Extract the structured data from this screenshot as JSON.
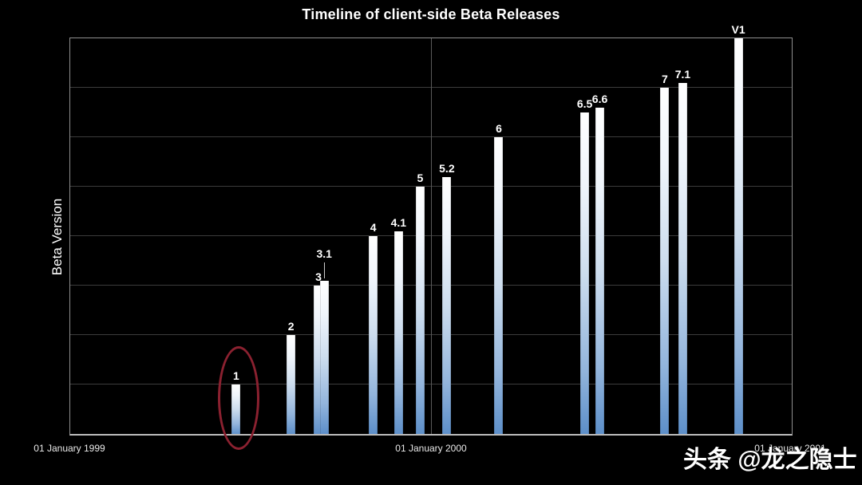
{
  "watermark": {
    "text": "头条 @龙之隐士"
  },
  "chart_data": {
    "type": "bar",
    "title": "Timeline of client-side Beta Releases",
    "ylabel": "Beta Version",
    "xlabel": "",
    "ylim": [
      0,
      8
    ],
    "grid": "horizontal gridlines every 1 unit; one vertical gridline at 01 January 2000; no visible y tick labels",
    "legend": "none",
    "background_color": "#000000",
    "bar_gradient_top": "#ffffff",
    "bar_gradient_bottom": "#5d8fc9",
    "x_axis": {
      "labels": [
        "01 January 1999",
        "01 January 2000",
        "01 January 2001"
      ],
      "range_start": "01 January 1999",
      "range_end": "01 January 2001"
    },
    "bars": [
      {
        "label": "1",
        "value": 1.0,
        "x_percent": 23.0,
        "circled": true
      },
      {
        "label": "2",
        "value": 2.0,
        "x_percent": 30.6
      },
      {
        "label": "3",
        "value": 3.0,
        "x_percent": 34.4
      },
      {
        "label": "3.1",
        "value": 3.1,
        "x_percent": 35.2,
        "label_raised": true
      },
      {
        "label": "4",
        "value": 4.0,
        "x_percent": 42.0
      },
      {
        "label": "4.1",
        "value": 4.1,
        "x_percent": 45.5
      },
      {
        "label": "5",
        "value": 5.0,
        "x_percent": 48.5
      },
      {
        "label": "5.2",
        "value": 5.2,
        "x_percent": 52.2
      },
      {
        "label": "6",
        "value": 6.0,
        "x_percent": 59.4
      },
      {
        "label": "6.5",
        "value": 6.5,
        "x_percent": 71.3
      },
      {
        "label": "6.6",
        "value": 6.6,
        "x_percent": 73.4
      },
      {
        "label": "7",
        "value": 7.0,
        "x_percent": 82.4
      },
      {
        "label": "7.1",
        "value": 7.1,
        "x_percent": 84.9
      },
      {
        "label": "V1",
        "value": 8.0,
        "x_percent": 92.6
      }
    ],
    "annotation": {
      "type": "red-ellipse",
      "target_bar": "1",
      "color": "#8b2130"
    }
  }
}
